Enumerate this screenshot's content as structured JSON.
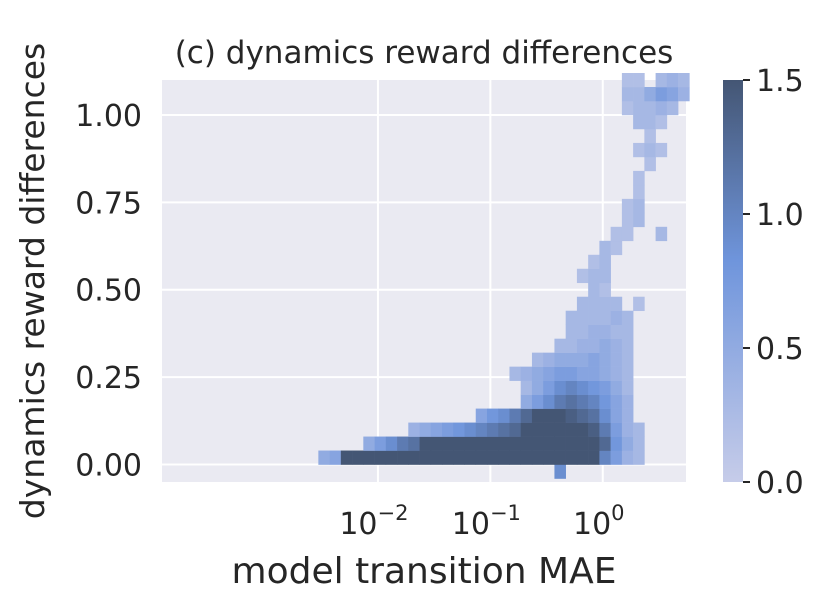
{
  "chart_data": {
    "type": "heatmap",
    "title": "(c) dynamics reward differences",
    "xlabel": "model transition MAE",
    "ylabel": "dynamics reward differences",
    "x_scale": "log",
    "xlim": [
      0.00012,
      5.5
    ],
    "ylim": [
      -0.05,
      1.1
    ],
    "x_ticks": [
      {
        "value": 0.01,
        "base": "10",
        "exp": "−2"
      },
      {
        "value": 0.1,
        "base": "10",
        "exp": "−1"
      },
      {
        "value": 1,
        "base": "10",
        "exp": "0"
      }
    ],
    "y_ticks": [
      {
        "value": 0.0,
        "label": "0.00"
      },
      {
        "value": 0.25,
        "label": "0.25"
      },
      {
        "value": 0.5,
        "label": "0.50"
      },
      {
        "value": 0.75,
        "label": "0.75"
      },
      {
        "value": 1.0,
        "label": "1.00"
      }
    ],
    "grid": true,
    "x_bin_log10_edges_start": -2.53,
    "x_bin_log10_width": 0.1,
    "y_bin_start": -0.04,
    "y_bin_width": 0.04,
    "cells": [
      {
        "row": -1,
        "cols": [
          [
            21,
            0.9
          ]
        ]
      },
      {
        "row": 0,
        "cols": [
          [
            0,
            0.5
          ],
          [
            1,
            0.6
          ],
          [
            2,
            1.5
          ],
          [
            3,
            1.5
          ],
          [
            4,
            1.5
          ],
          [
            5,
            1.5
          ],
          [
            6,
            1.5
          ],
          [
            7,
            1.5
          ],
          [
            8,
            1.5
          ],
          [
            9,
            1.5
          ],
          [
            10,
            1.5
          ],
          [
            11,
            1.5
          ],
          [
            12,
            1.5
          ],
          [
            13,
            1.5
          ],
          [
            14,
            1.5
          ],
          [
            15,
            1.5
          ],
          [
            16,
            1.5
          ],
          [
            17,
            1.5
          ],
          [
            18,
            1.5
          ],
          [
            19,
            1.5
          ],
          [
            20,
            1.5
          ],
          [
            21,
            1.5
          ],
          [
            22,
            1.5
          ],
          [
            23,
            1.5
          ],
          [
            24,
            1.5
          ],
          [
            25,
            1.0
          ],
          [
            26,
            0.7
          ],
          [
            27,
            0.4
          ],
          [
            28,
            0.3
          ]
        ]
      },
      {
        "row": 1,
        "cols": [
          [
            4,
            0.5
          ],
          [
            5,
            0.7
          ],
          [
            6,
            0.9
          ],
          [
            7,
            1.1
          ],
          [
            8,
            1.2
          ],
          [
            9,
            1.5
          ],
          [
            10,
            1.5
          ],
          [
            11,
            1.5
          ],
          [
            12,
            1.5
          ],
          [
            13,
            1.5
          ],
          [
            14,
            1.5
          ],
          [
            15,
            1.5
          ],
          [
            16,
            1.5
          ],
          [
            17,
            1.5
          ],
          [
            18,
            1.5
          ],
          [
            19,
            1.5
          ],
          [
            20,
            1.5
          ],
          [
            21,
            1.5
          ],
          [
            22,
            1.5
          ],
          [
            23,
            1.5
          ],
          [
            24,
            1.5
          ],
          [
            25,
            1.3
          ],
          [
            26,
            0.8
          ],
          [
            27,
            0.5
          ],
          [
            28,
            0.3
          ]
        ]
      },
      {
        "row": 2,
        "cols": [
          [
            8,
            0.4
          ],
          [
            9,
            0.5
          ],
          [
            10,
            0.6
          ],
          [
            11,
            0.7
          ],
          [
            12,
            0.8
          ],
          [
            13,
            0.9
          ],
          [
            14,
            1.0
          ],
          [
            15,
            1.1
          ],
          [
            16,
            1.2
          ],
          [
            17,
            1.3
          ],
          [
            18,
            1.5
          ],
          [
            19,
            1.5
          ],
          [
            20,
            1.5
          ],
          [
            21,
            1.5
          ],
          [
            22,
            1.5
          ],
          [
            23,
            1.5
          ],
          [
            24,
            1.4
          ],
          [
            25,
            1.1
          ],
          [
            26,
            0.7
          ],
          [
            27,
            0.4
          ],
          [
            28,
            0.3
          ]
        ]
      },
      {
        "row": 3,
        "cols": [
          [
            14,
            0.6
          ],
          [
            15,
            0.8
          ],
          [
            16,
            0.9
          ],
          [
            17,
            1.1
          ],
          [
            18,
            1.3
          ],
          [
            19,
            1.5
          ],
          [
            20,
            1.5
          ],
          [
            21,
            1.5
          ],
          [
            22,
            1.4
          ],
          [
            23,
            1.3
          ],
          [
            24,
            1.2
          ],
          [
            25,
            0.9
          ],
          [
            26,
            0.6
          ],
          [
            27,
            0.4
          ]
        ]
      },
      {
        "row": 4,
        "cols": [
          [
            18,
            0.5
          ],
          [
            19,
            0.7
          ],
          [
            20,
            0.9
          ],
          [
            21,
            1.1
          ],
          [
            22,
            1.2
          ],
          [
            23,
            1.1
          ],
          [
            24,
            1.0
          ],
          [
            25,
            0.8
          ],
          [
            26,
            0.6
          ],
          [
            27,
            0.4
          ]
        ]
      },
      {
        "row": 5,
        "cols": [
          [
            18,
            0.3
          ],
          [
            19,
            0.5
          ],
          [
            20,
            0.7
          ],
          [
            21,
            0.9
          ],
          [
            22,
            1.0
          ],
          [
            23,
            0.9
          ],
          [
            24,
            0.8
          ],
          [
            25,
            0.7
          ],
          [
            26,
            0.5
          ],
          [
            27,
            0.3
          ]
        ]
      },
      {
        "row": 6,
        "cols": [
          [
            17,
            0.3
          ],
          [
            18,
            0.4
          ],
          [
            19,
            0.5
          ],
          [
            20,
            0.6
          ],
          [
            21,
            0.7
          ],
          [
            22,
            0.7
          ],
          [
            23,
            0.6
          ],
          [
            24,
            0.6
          ],
          [
            25,
            0.5
          ],
          [
            26,
            0.4
          ],
          [
            27,
            0.3
          ]
        ]
      },
      {
        "row": 7,
        "cols": [
          [
            19,
            0.3
          ],
          [
            20,
            0.4
          ],
          [
            21,
            0.5
          ],
          [
            22,
            0.5
          ],
          [
            23,
            0.5
          ],
          [
            24,
            0.6
          ],
          [
            25,
            0.5
          ],
          [
            26,
            0.4
          ],
          [
            27,
            0.3
          ]
        ]
      },
      {
        "row": 8,
        "cols": [
          [
            21,
            0.3
          ],
          [
            22,
            0.3
          ],
          [
            23,
            0.4
          ],
          [
            24,
            0.4
          ],
          [
            25,
            0.5
          ],
          [
            26,
            0.4
          ],
          [
            27,
            0.3
          ]
        ]
      },
      {
        "row": 9,
        "cols": [
          [
            22,
            0.3
          ],
          [
            23,
            0.3
          ],
          [
            24,
            0.4
          ],
          [
            25,
            0.4
          ],
          [
            26,
            0.3
          ],
          [
            27,
            0.3
          ]
        ]
      },
      {
        "row": 10,
        "cols": [
          [
            22,
            0.3
          ],
          [
            23,
            0.3
          ],
          [
            24,
            0.3
          ],
          [
            25,
            0.3
          ],
          [
            26,
            0.4
          ],
          [
            27,
            0.3
          ]
        ]
      },
      {
        "row": 11,
        "cols": [
          [
            23,
            0.3
          ],
          [
            24,
            0.3
          ],
          [
            25,
            0.3
          ],
          [
            26,
            0.3
          ],
          [
            28,
            0.2
          ]
        ]
      },
      {
        "row": 12,
        "cols": [
          [
            24,
            0.3
          ],
          [
            25,
            0.2
          ]
        ]
      },
      {
        "row": 13,
        "cols": [
          [
            23,
            0.2
          ],
          [
            24,
            0.3
          ],
          [
            25,
            0.3
          ]
        ]
      },
      {
        "row": 14,
        "cols": [
          [
            24,
            0.2
          ],
          [
            25,
            0.3
          ]
        ]
      },
      {
        "row": 15,
        "cols": [
          [
            25,
            0.3
          ],
          [
            26,
            0.2
          ]
        ]
      },
      {
        "row": 16,
        "cols": [
          [
            26,
            0.2
          ],
          [
            27,
            0.2
          ],
          [
            30,
            0.3
          ]
        ]
      },
      {
        "row": 17,
        "cols": [
          [
            27,
            0.2
          ],
          [
            28,
            0.3
          ]
        ]
      },
      {
        "row": 18,
        "cols": [
          [
            27,
            0.2
          ],
          [
            28,
            0.3
          ]
        ]
      },
      {
        "row": 19,
        "cols": [
          [
            28,
            0.2
          ]
        ]
      },
      {
        "row": 20,
        "cols": [
          [
            28,
            0.2
          ]
        ]
      },
      {
        "row": 21,
        "cols": [
          [
            29,
            0.2
          ]
        ]
      },
      {
        "row": 22,
        "cols": [
          [
            28,
            0.2
          ],
          [
            29,
            0.3
          ],
          [
            30,
            0.2
          ]
        ]
      },
      {
        "row": 23,
        "cols": [
          [
            29,
            0.2
          ]
        ]
      },
      {
        "row": 24,
        "cols": [
          [
            28,
            0.3
          ],
          [
            29,
            0.3
          ],
          [
            30,
            0.2
          ]
        ]
      },
      {
        "row": 25,
        "cols": [
          [
            27,
            0.2
          ],
          [
            28,
            0.3
          ],
          [
            29,
            0.3
          ],
          [
            30,
            0.4
          ],
          [
            31,
            0.3
          ]
        ]
      },
      {
        "row": 26,
        "cols": [
          [
            27,
            0.3
          ],
          [
            28,
            0.3
          ],
          [
            29,
            0.5
          ],
          [
            30,
            0.7
          ],
          [
            31,
            0.6
          ],
          [
            32,
            0.4
          ]
        ]
      },
      {
        "row": 27,
        "cols": [
          [
            27,
            0.2
          ],
          [
            28,
            0.2
          ],
          [
            30,
            0.3
          ],
          [
            31,
            0.4
          ],
          [
            32,
            0.3
          ]
        ]
      }
    ],
    "colorbar": {
      "range": [
        0,
        1.5
      ],
      "ticks": [
        {
          "value": 0.0,
          "label": "0.0"
        },
        {
          "value": 0.5,
          "label": "0.5"
        },
        {
          "value": 1.0,
          "label": "1.0"
        },
        {
          "value": 1.5,
          "label": "1.5"
        }
      ],
      "color_low": "#c6cce9",
      "color_mid": "#6f95dc",
      "color_high": "#445674"
    },
    "colors": {
      "plot_background": "#eaeaf2",
      "grid": "#ffffff",
      "text": "#262626"
    }
  }
}
